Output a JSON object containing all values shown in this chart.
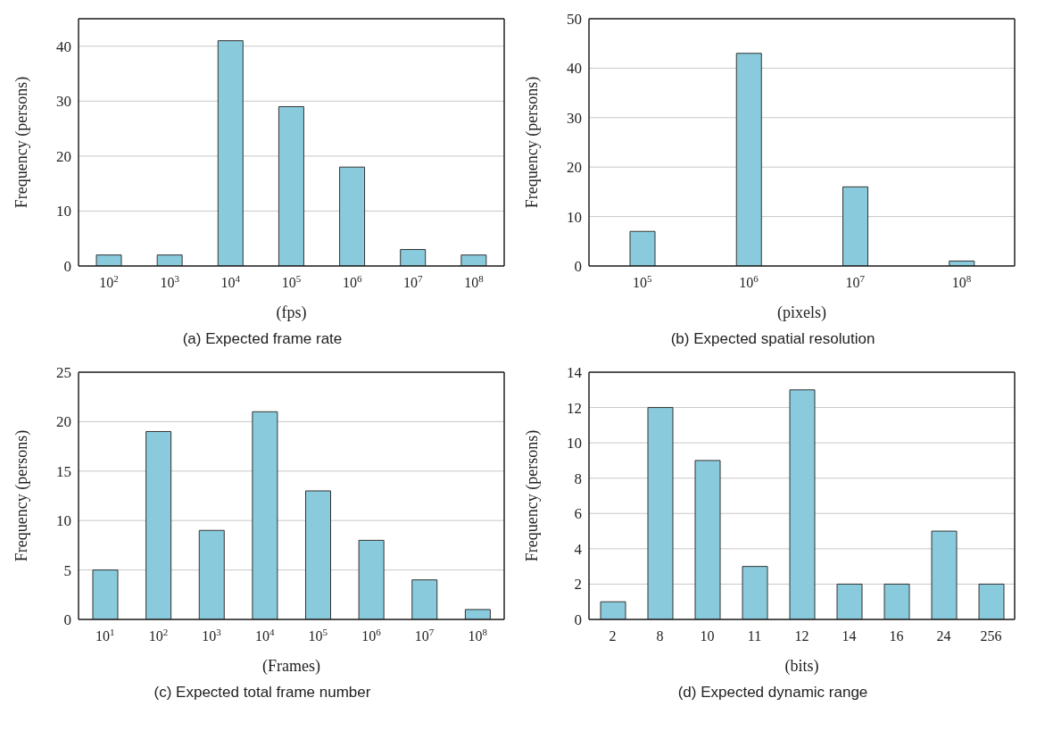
{
  "chart_data": [
    {
      "type": "bar",
      "title": "(a) Expected frame rate",
      "xlabel": "(fps)",
      "ylabel": "Frequency (persons)",
      "categories": [
        "10$^{2}$",
        "10$^{3}$",
        "10$^{4}$",
        "10$^{5}$",
        "10$^{6}$",
        "10$^{7}$",
        "10$^{8}$"
      ],
      "values": [
        2,
        2,
        41,
        29,
        18,
        3,
        2
      ],
      "color": "#89cbdc",
      "ylim": [
        0,
        45
      ],
      "yticks": [
        0,
        10,
        20,
        30,
        40
      ],
      "grid": "y",
      "legend": false
    },
    {
      "type": "bar",
      "title": "(b) Expected spatial resolution",
      "xlabel": "(pixels)",
      "ylabel": "Frequency (persons)",
      "categories": [
        "10$^{5}$",
        "10$^{6}$",
        "10$^{7}$",
        "10$^{8}$"
      ],
      "values": [
        7,
        43,
        16,
        1
      ],
      "color": "#89cbdc",
      "ylim": [
        0,
        50
      ],
      "yticks": [
        0,
        10,
        20,
        30,
        40,
        50
      ],
      "grid": "y",
      "legend": false
    },
    {
      "type": "bar",
      "title": "(c) Expected total frame number",
      "xlabel": "(Frames)",
      "ylabel": "Frequency (persons)",
      "categories": [
        "10$^{1}$",
        "10$^{2}$",
        "10$^{3}$",
        "10$^{4}$",
        "10$^{5}$",
        "10$^{6}$",
        "10$^{7}$",
        "10$^{8}$"
      ],
      "values": [
        5,
        19,
        9,
        21,
        13,
        8,
        4,
        1
      ],
      "color": "#89cbdc",
      "ylim": [
        0,
        25
      ],
      "yticks": [
        0,
        5,
        10,
        15,
        20,
        25
      ],
      "grid": "y",
      "legend": false
    },
    {
      "type": "bar",
      "title": "(d) Expected dynamic range",
      "xlabel": "(bits)",
      "ylabel": "Frequency (persons)",
      "categories": [
        "2",
        "8",
        "10",
        "11",
        "12",
        "14",
        "16",
        "24",
        "256"
      ],
      "values": [
        1,
        12,
        9,
        3,
        13,
        2,
        2,
        5,
        2
      ],
      "color": "#89cbdc",
      "ylim": [
        0,
        14
      ],
      "yticks": [
        0,
        2,
        4,
        6,
        8,
        10,
        12,
        14
      ],
      "grid": "y",
      "legend": false
    }
  ]
}
